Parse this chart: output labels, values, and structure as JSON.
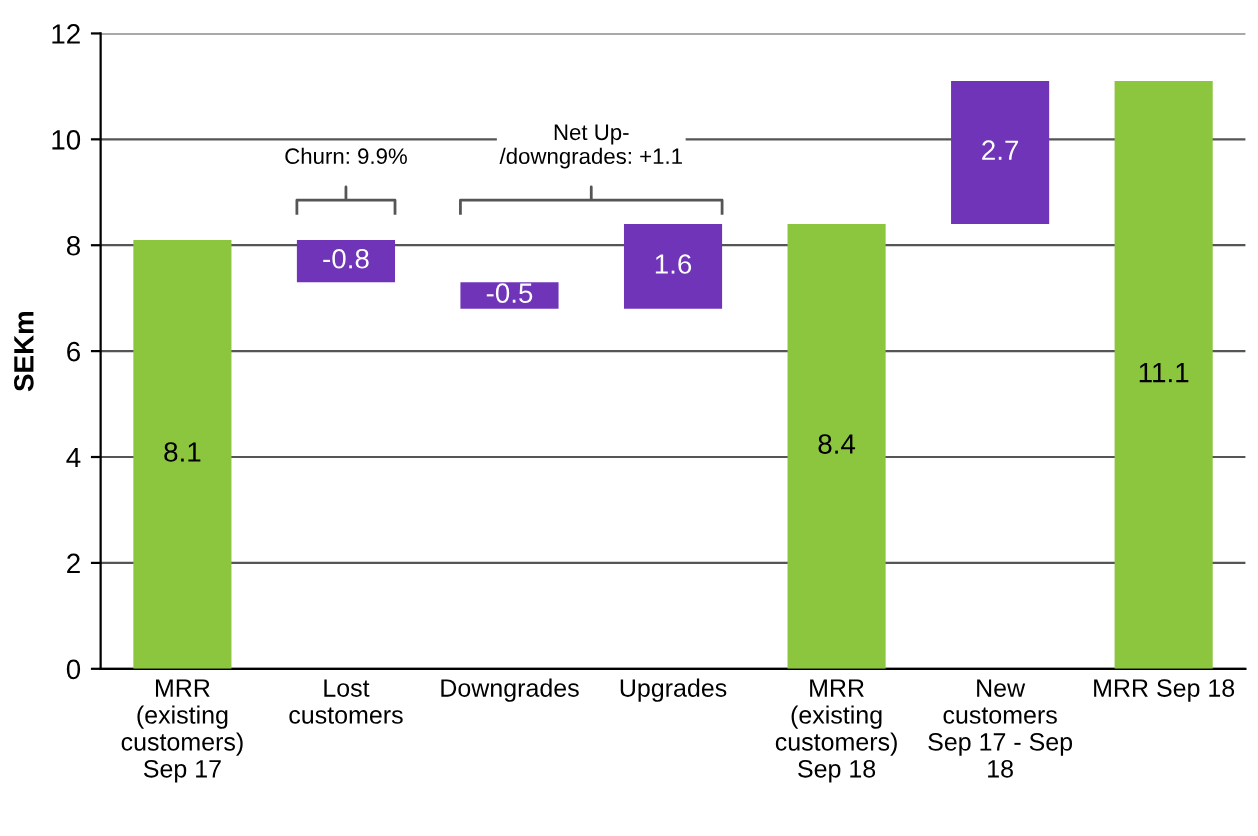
{
  "chart_data": {
    "type": "bar",
    "ylabel": "SEKm",
    "categories": [
      "MRR\n(existing\ncustomers)\nSep 17",
      "Lost\ncustomers",
      "Downgrades",
      "Upgrades",
      "MRR\n(existing\ncustomers)\nSep 18",
      "New\ncustomers\nSep 17 - Sep\n18",
      "MRR Sep 18"
    ],
    "values": [
      8.1,
      -0.8,
      -0.5,
      1.6,
      8.4,
      2.7,
      11.1
    ],
    "base": [
      0,
      8.1,
      7.3,
      6.8,
      0,
      8.4,
      0
    ],
    "colors": [
      "#8cc63e",
      "#7034b8",
      "#7034b8",
      "#7034b8",
      "#8cc63e",
      "#7034b8",
      "#8cc63e"
    ],
    "data_labels": true,
    "annotations": [
      "Churn: 9.9%",
      "Net Up-\n/downgrades: +1.1"
    ],
    "ylim": [
      0,
      12
    ],
    "yticks": [
      0,
      2,
      4,
      6,
      8,
      10,
      12
    ],
    "grid": "y",
    "legend": false
  }
}
